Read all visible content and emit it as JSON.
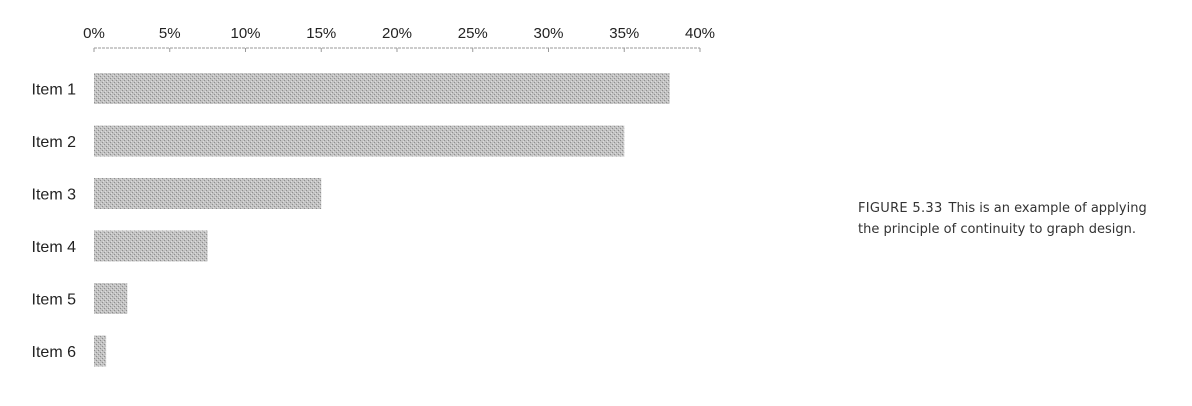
{
  "chart_data": {
    "type": "bar",
    "orientation": "horizontal",
    "categories": [
      "Item 1",
      "Item 2",
      "Item 3",
      "Item 4",
      "Item 5",
      "Item 6"
    ],
    "values": [
      38,
      35,
      15,
      7.5,
      2.2,
      0.8
    ],
    "xlim": [
      0,
      40
    ],
    "xticks": [
      "0%",
      "5%",
      "10%",
      "15%",
      "20%",
      "25%",
      "30%",
      "35%",
      "40%"
    ],
    "xtick_values": [
      0,
      5,
      10,
      15,
      20,
      25,
      30,
      35,
      40
    ],
    "axis_position": "top",
    "grid": false,
    "legend": "none",
    "bar_color": "#b5b5b5",
    "title": "",
    "xlabel": "",
    "ylabel": ""
  },
  "caption": {
    "figure_number": "FIGURE 5.33",
    "text": "This is an example of applying the principle of continuity to graph design."
  }
}
